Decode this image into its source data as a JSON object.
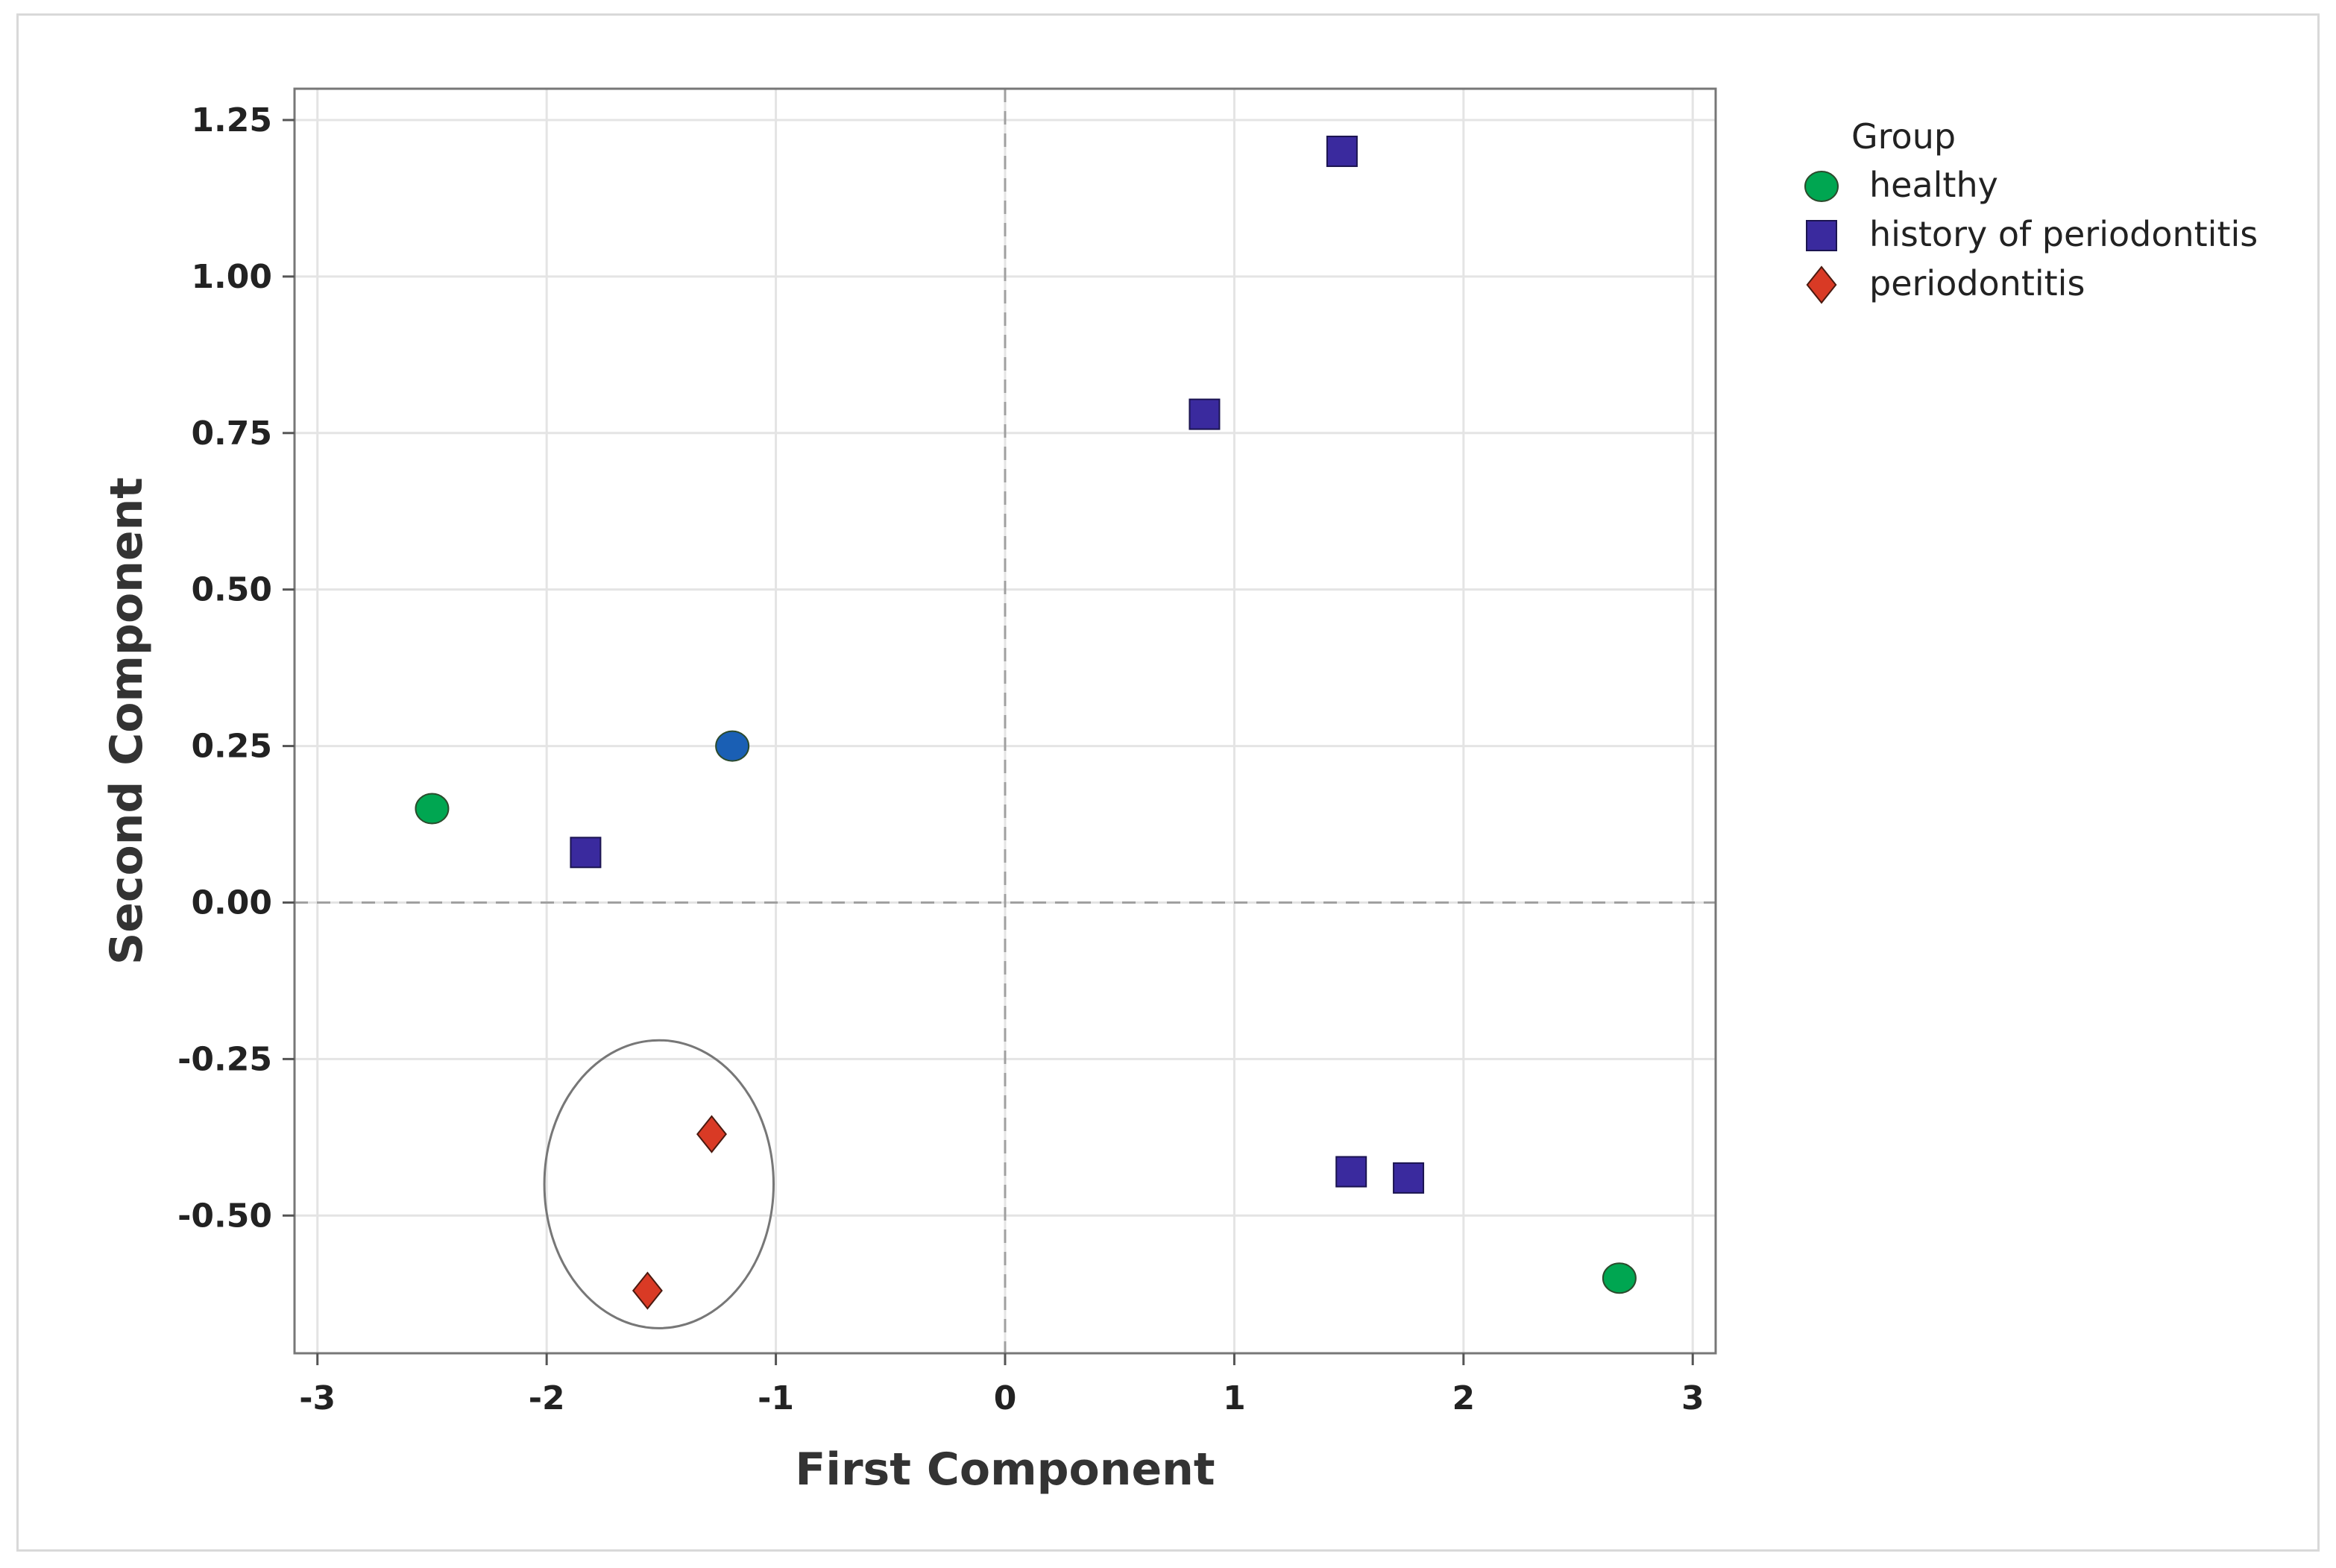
{
  "chart_data": {
    "type": "scatter",
    "xlabel": "First Component",
    "ylabel": "Second Component",
    "xlim": [
      -3.1,
      3.1
    ],
    "ylim": [
      -0.72,
      1.3
    ],
    "x_ticks": [
      -3,
      -2,
      -1,
      0,
      1,
      2,
      3
    ],
    "x_tick_labels": [
      "-3",
      "-2",
      "-1",
      "0",
      "1",
      "2",
      "3"
    ],
    "y_ticks": [
      1.25,
      1.0,
      0.75,
      0.5,
      0.25,
      0.0,
      -0.25,
      -0.5
    ],
    "y_tick_labels": [
      "1.25",
      "1.00",
      "0.75",
      "0.50",
      "0.25",
      "0.00",
      "-0.25",
      "-0.50"
    ],
    "grid": true,
    "reference_lines": {
      "x": 0,
      "y": 0,
      "style": "dashed"
    },
    "legend": {
      "title": "Group",
      "placement": "right-top",
      "entries": [
        {
          "label": "healthy",
          "marker": "circle",
          "color": "#00A651"
        },
        {
          "label": "history of periodontitis",
          "marker": "square",
          "color": "#3A2A9E"
        },
        {
          "label": "periodontitis",
          "marker": "diamond",
          "color": "#D93A25"
        }
      ]
    },
    "series": [
      {
        "name": "healthy",
        "marker": "circle",
        "color": "#00A651",
        "points": [
          {
            "x": -2.5,
            "y": 0.15
          },
          {
            "x": 2.68,
            "y": -0.6
          }
        ]
      },
      {
        "name": "history of periodontitis",
        "marker": "square",
        "color": "#3A2A9E",
        "points": [
          {
            "x": 1.47,
            "y": 1.2
          },
          {
            "x": 0.87,
            "y": 0.78
          },
          {
            "x": -1.83,
            "y": 0.08
          },
          {
            "x": 1.51,
            "y": -0.43
          },
          {
            "x": 1.76,
            "y": -0.44
          }
        ]
      },
      {
        "name": "periodontitis",
        "marker": "diamond",
        "color": "#D93A25",
        "points": [
          {
            "x": -1.28,
            "y": -0.37
          },
          {
            "x": -1.56,
            "y": -0.62
          }
        ]
      },
      {
        "marker": "circle",
        "color": "#1a5fb4",
        "points": [
          {
            "x": -1.19,
            "y": 0.25
          }
        ]
      }
    ],
    "annotation_ellipse": {
      "cx": -1.51,
      "cy": -0.45,
      "rx": 0.5,
      "ry": 0.23
    }
  }
}
